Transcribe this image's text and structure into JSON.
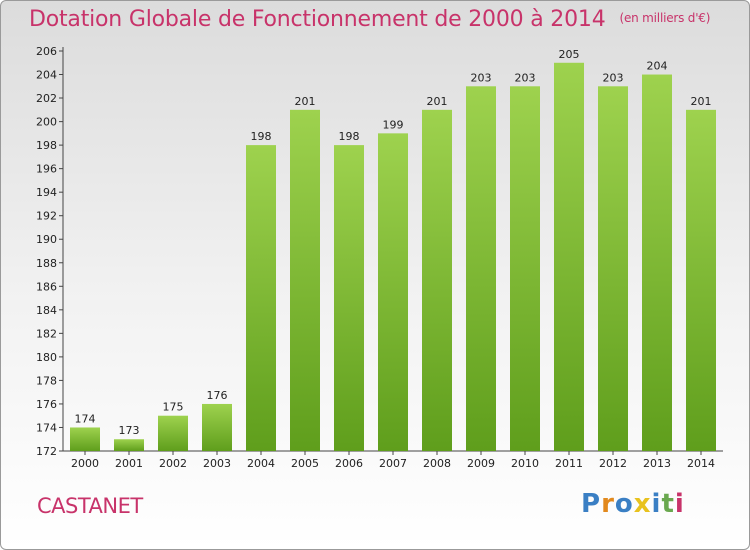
{
  "chart_data": {
    "type": "bar",
    "title": "Dotation Globale de Fonctionnement de 2000 à 2014",
    "unit": "(en milliers d'€)",
    "categories": [
      "2000",
      "2001",
      "2002",
      "2003",
      "2004",
      "2005",
      "2006",
      "2007",
      "2008",
      "2009",
      "2010",
      "2011",
      "2012",
      "2013",
      "2014"
    ],
    "values": [
      174,
      173,
      175,
      176,
      198,
      201,
      198,
      199,
      201,
      203,
      203,
      205,
      203,
      204,
      201
    ],
    "ylim": [
      172,
      206
    ],
    "yticks": [
      172,
      174,
      176,
      178,
      180,
      182,
      184,
      186,
      188,
      190,
      192,
      194,
      196,
      198,
      200,
      202,
      204,
      206
    ],
    "grid": false,
    "bar_color": "#7ab82e"
  },
  "footer": {
    "city": "CASTANET",
    "logo": "Proxiti"
  }
}
